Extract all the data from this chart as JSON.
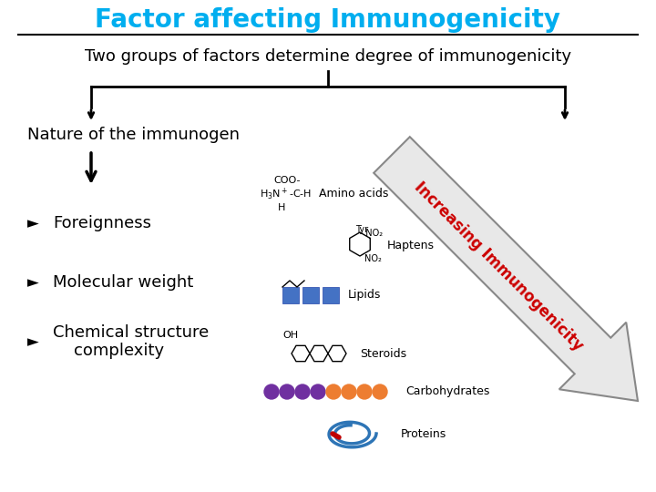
{
  "title": "Factor affecting Immunogenicity",
  "title_color": "#00AEEF",
  "subtitle": "Two groups of factors determine degree of immunogenicity",
  "subtitle_color": "#000000",
  "branch_label": "Nature of the immunogen",
  "arrow_label": "Increasing Immunogenicity",
  "arrow_label_color": "#CC0000",
  "background_color": "#FFFFFF",
  "line_color": "#000000"
}
